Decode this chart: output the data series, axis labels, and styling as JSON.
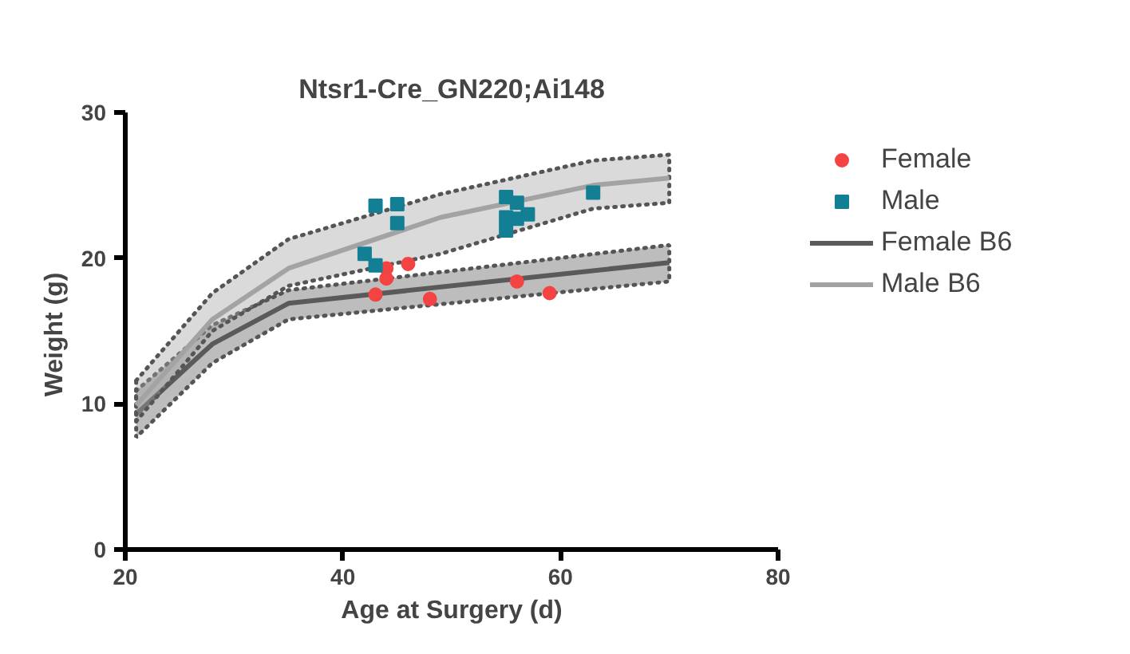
{
  "chart_data": {
    "type": "scatter",
    "title": "Ntsr1-Cre_GN220;Ai148",
    "xlabel": "Age at Surgery (d)",
    "ylabel": "Weight  (g)",
    "xlim": [
      20,
      80
    ],
    "ylim": [
      0,
      30
    ],
    "xticks": [
      20,
      40,
      60,
      80
    ],
    "yticks": [
      0,
      10,
      20,
      30
    ],
    "grid": false,
    "legend": "right",
    "series": [
      {
        "name": "Female",
        "marker": "circle",
        "color": "#f44343",
        "x": [
          44,
          46,
          44,
          43,
          48,
          56,
          59
        ],
        "values": [
          19.3,
          19.6,
          18.6,
          17.5,
          17.2,
          18.4,
          17.6
        ]
      },
      {
        "name": "Male",
        "marker": "square",
        "color": "#137f95",
        "x": [
          43,
          45,
          45,
          42,
          43,
          55,
          56,
          55,
          56,
          57,
          55,
          63
        ],
        "values": [
          23.6,
          23.7,
          22.4,
          20.3,
          19.5,
          24.2,
          23.8,
          22.8,
          22.7,
          23.0,
          21.9,
          24.5
        ]
      },
      {
        "name": "Female B6",
        "type": "line",
        "line_style": "solid",
        "color": "#5a5a5a",
        "x": [
          21,
          28,
          35,
          70
        ],
        "values": [
          9.3,
          14.1,
          16.9,
          19.7
        ],
        "lower": [
          7.7,
          12.8,
          15.8,
          18.4
        ],
        "upper": [
          10.9,
          15.4,
          17.8,
          20.9
        ]
      },
      {
        "name": "Male B6",
        "type": "line",
        "line_style": "solid",
        "color": "#a3a3a3",
        "x": [
          21,
          28,
          35,
          49,
          63,
          70
        ],
        "values": [
          9.9,
          15.8,
          19.3,
          22.8,
          25.0,
          25.5
        ],
        "lower": [
          8.8,
          15.0,
          18.1,
          20.3,
          23.4,
          23.8
        ],
        "upper": [
          11.6,
          17.6,
          21.3,
          24.4,
          26.7,
          27.1
        ]
      }
    ]
  }
}
